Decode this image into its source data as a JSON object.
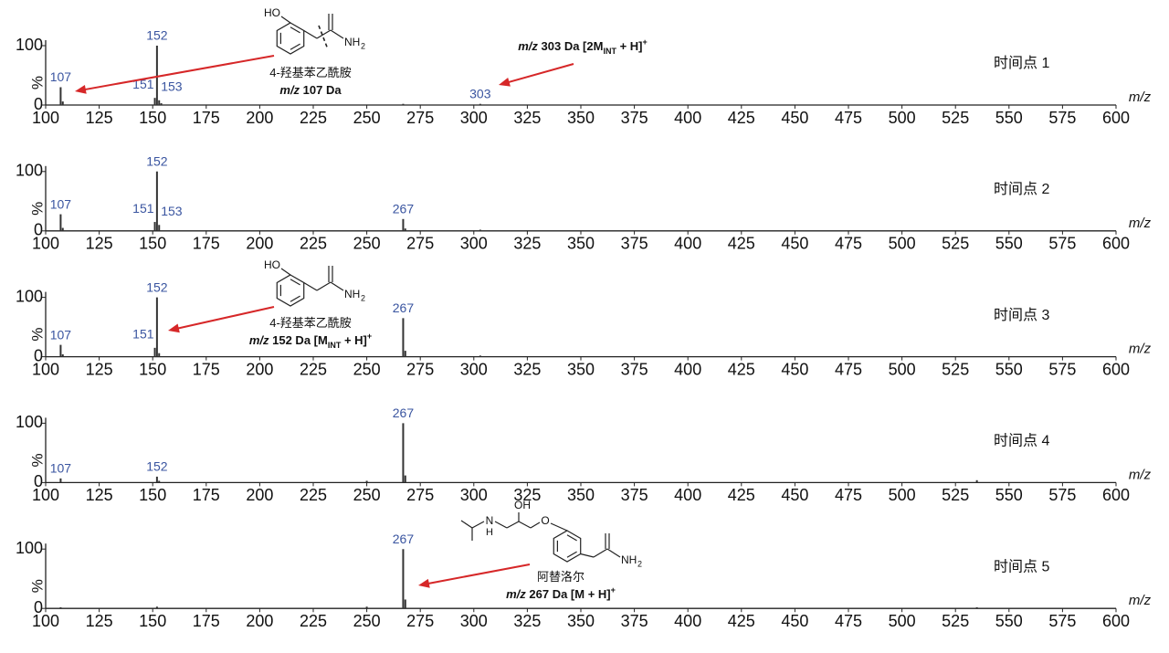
{
  "chart_data": [
    {
      "type": "spectrum",
      "title": "时间点 1",
      "xlabel": "m/z",
      "ylabel": "%",
      "x": [
        107,
        108,
        151,
        152,
        153,
        154,
        267,
        303
      ],
      "values": [
        30,
        6,
        12,
        100,
        8,
        3,
        2,
        2
      ],
      "labels": [
        "107",
        null,
        "151",
        "152",
        "153",
        null,
        null,
        "303"
      ],
      "xlim": [
        100,
        600
      ],
      "xticks": [
        100,
        125,
        150,
        175,
        200,
        225,
        250,
        275,
        300,
        325,
        350,
        375,
        400,
        425,
        450,
        475,
        500,
        525,
        550,
        575,
        600
      ],
      "ylim": [
        0,
        100
      ],
      "yticks": [
        0,
        100
      ],
      "color": "#333333",
      "label_color": "#3a55a0",
      "annotations": [
        {
          "atoms": [
            "HO",
            "NH",
            "2"
          ],
          "lines": [
            [
              {
                "text": "4-羟基苯乙酰胺",
                "style": "normal"
              }
            ],
            [
              {
                "text": "m/z",
                "style": "bold-italic"
              },
              {
                "text": " 107 Da",
                "style": "bold"
              }
            ]
          ]
        },
        {
          "atoms": [],
          "lines": [
            [
              {
                "text": "m/z",
                "style": "bold-italic"
              },
              {
                "text": " 303 Da [2M",
                "style": "bold"
              },
              {
                "text": "INT",
                "style": "bold-sub"
              },
              {
                "text": " + H]",
                "style": "bold"
              },
              {
                "text": "+",
                "style": "bold-sup"
              }
            ]
          ]
        }
      ]
    },
    {
      "type": "spectrum",
      "title": "时间点 2",
      "xlabel": "m/z",
      "ylabel": "%",
      "x": [
        107,
        108,
        151,
        152,
        153,
        267,
        268,
        303
      ],
      "values": [
        28,
        5,
        15,
        100,
        10,
        20,
        4,
        2
      ],
      "labels": [
        "107",
        null,
        "151",
        "152",
        "153",
        "267",
        null,
        null
      ],
      "xlim": [
        100,
        600
      ],
      "xticks": [
        100,
        125,
        150,
        175,
        200,
        225,
        250,
        275,
        300,
        325,
        350,
        375,
        400,
        425,
        450,
        475,
        500,
        525,
        550,
        575,
        600
      ],
      "ylim": [
        0,
        100
      ],
      "yticks": [
        0,
        100
      ],
      "color": "#333333",
      "label_color": "#3a55a0",
      "annotations": []
    },
    {
      "type": "spectrum",
      "title": "时间点 3",
      "xlabel": "m/z",
      "ylabel": "%",
      "x": [
        107,
        108,
        151,
        152,
        153,
        267,
        268,
        303
      ],
      "values": [
        20,
        4,
        15,
        100,
        6,
        65,
        10,
        2
      ],
      "labels": [
        "107",
        null,
        "151",
        "152",
        null,
        "267",
        null,
        null
      ],
      "xlim": [
        100,
        600
      ],
      "xticks": [
        100,
        125,
        150,
        175,
        200,
        225,
        250,
        275,
        300,
        325,
        350,
        375,
        400,
        425,
        450,
        475,
        500,
        525,
        550,
        575,
        600
      ],
      "ylim": [
        0,
        100
      ],
      "yticks": [
        0,
        100
      ],
      "color": "#333333",
      "label_color": "#3a55a0",
      "annotations": [
        {
          "atoms": [
            "HO",
            "NH",
            "2"
          ],
          "lines": [
            [
              {
                "text": "4-羟基苯乙酰胺",
                "style": "normal"
              }
            ],
            [
              {
                "text": "m/z",
                "style": "bold-italic"
              },
              {
                "text": " 152 Da [M",
                "style": "bold"
              },
              {
                "text": "INT",
                "style": "bold-sub"
              },
              {
                "text": " + H]",
                "style": "bold"
              },
              {
                "text": "+",
                "style": "bold-sup"
              }
            ]
          ]
        }
      ]
    },
    {
      "type": "spectrum",
      "title": "时间点 4",
      "xlabel": "m/z",
      "ylabel": "%",
      "x": [
        107,
        152,
        153,
        250,
        267,
        268,
        535
      ],
      "values": [
        7,
        10,
        3,
        3,
        100,
        12,
        4
      ],
      "labels": [
        "107",
        "152",
        null,
        null,
        "267",
        null,
        null
      ],
      "xlim": [
        100,
        600
      ],
      "xticks": [
        100,
        125,
        150,
        175,
        200,
        225,
        250,
        275,
        300,
        325,
        350,
        375,
        400,
        425,
        450,
        475,
        500,
        525,
        550,
        575,
        600
      ],
      "ylim": [
        0,
        100
      ],
      "yticks": [
        0,
        100
      ],
      "color": "#333333",
      "label_color": "#3a55a0",
      "annotations": []
    },
    {
      "type": "spectrum",
      "title": "时间点 5",
      "xlabel": "m/z",
      "ylabel": "%",
      "x": [
        107,
        152,
        250,
        267,
        268,
        535
      ],
      "values": [
        2,
        3,
        3,
        100,
        15,
        2
      ],
      "labels": [
        null,
        null,
        null,
        "267",
        null,
        null
      ],
      "xlim": [
        100,
        600
      ],
      "xticks": [
        100,
        125,
        150,
        175,
        200,
        225,
        250,
        275,
        300,
        325,
        350,
        375,
        400,
        425,
        450,
        475,
        500,
        525,
        550,
        575,
        600
      ],
      "ylim": [
        0,
        100
      ],
      "yticks": [
        0,
        100
      ],
      "color": "#333333",
      "label_color": "#3a55a0",
      "annotations": [
        {
          "atoms": [
            "N",
            "H",
            "OH",
            "O",
            "NH",
            "2"
          ],
          "lines": [
            [
              {
                "text": "阿替洛尔",
                "style": "normal"
              }
            ],
            [
              {
                "text": "m/z",
                "style": "bold-italic"
              },
              {
                "text": " 267 Da [M + H]",
                "style": "bold"
              },
              {
                "text": "+",
                "style": "bold-sup"
              }
            ]
          ]
        }
      ]
    }
  ]
}
